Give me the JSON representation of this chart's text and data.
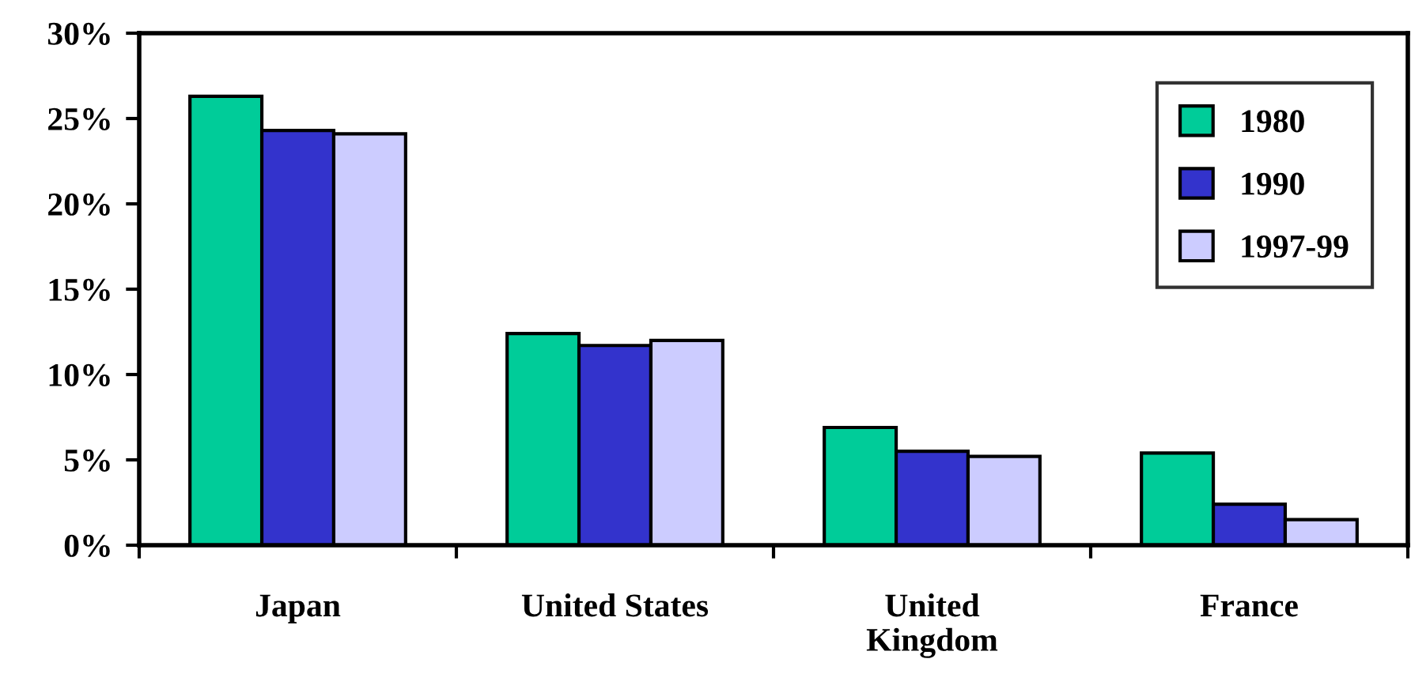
{
  "chart_data": {
    "type": "bar",
    "categories": [
      "Japan",
      "United States",
      "United\nKingdom",
      "France"
    ],
    "series": [
      {
        "name": "1980",
        "color": "#00cc99",
        "values": [
          26.3,
          12.4,
          6.9,
          5.4
        ]
      },
      {
        "name": "1990",
        "color": "#3333cc",
        "values": [
          24.3,
          11.7,
          5.5,
          2.4
        ]
      },
      {
        "name": "1997-99",
        "color": "#ccccff",
        "values": [
          24.1,
          12.0,
          5.2,
          1.5
        ]
      }
    ],
    "ylim": [
      0,
      30
    ],
    "yticks": [
      {
        "value": 0,
        "label": "0%"
      },
      {
        "value": 5,
        "label": "5%"
      },
      {
        "value": 10,
        "label": "10%"
      },
      {
        "value": 15,
        "label": "15%"
      },
      {
        "value": 20,
        "label": "20%"
      },
      {
        "value": 25,
        "label": "25%"
      },
      {
        "value": 30,
        "label": "30%"
      }
    ],
    "grid": false,
    "legend": "top right"
  }
}
